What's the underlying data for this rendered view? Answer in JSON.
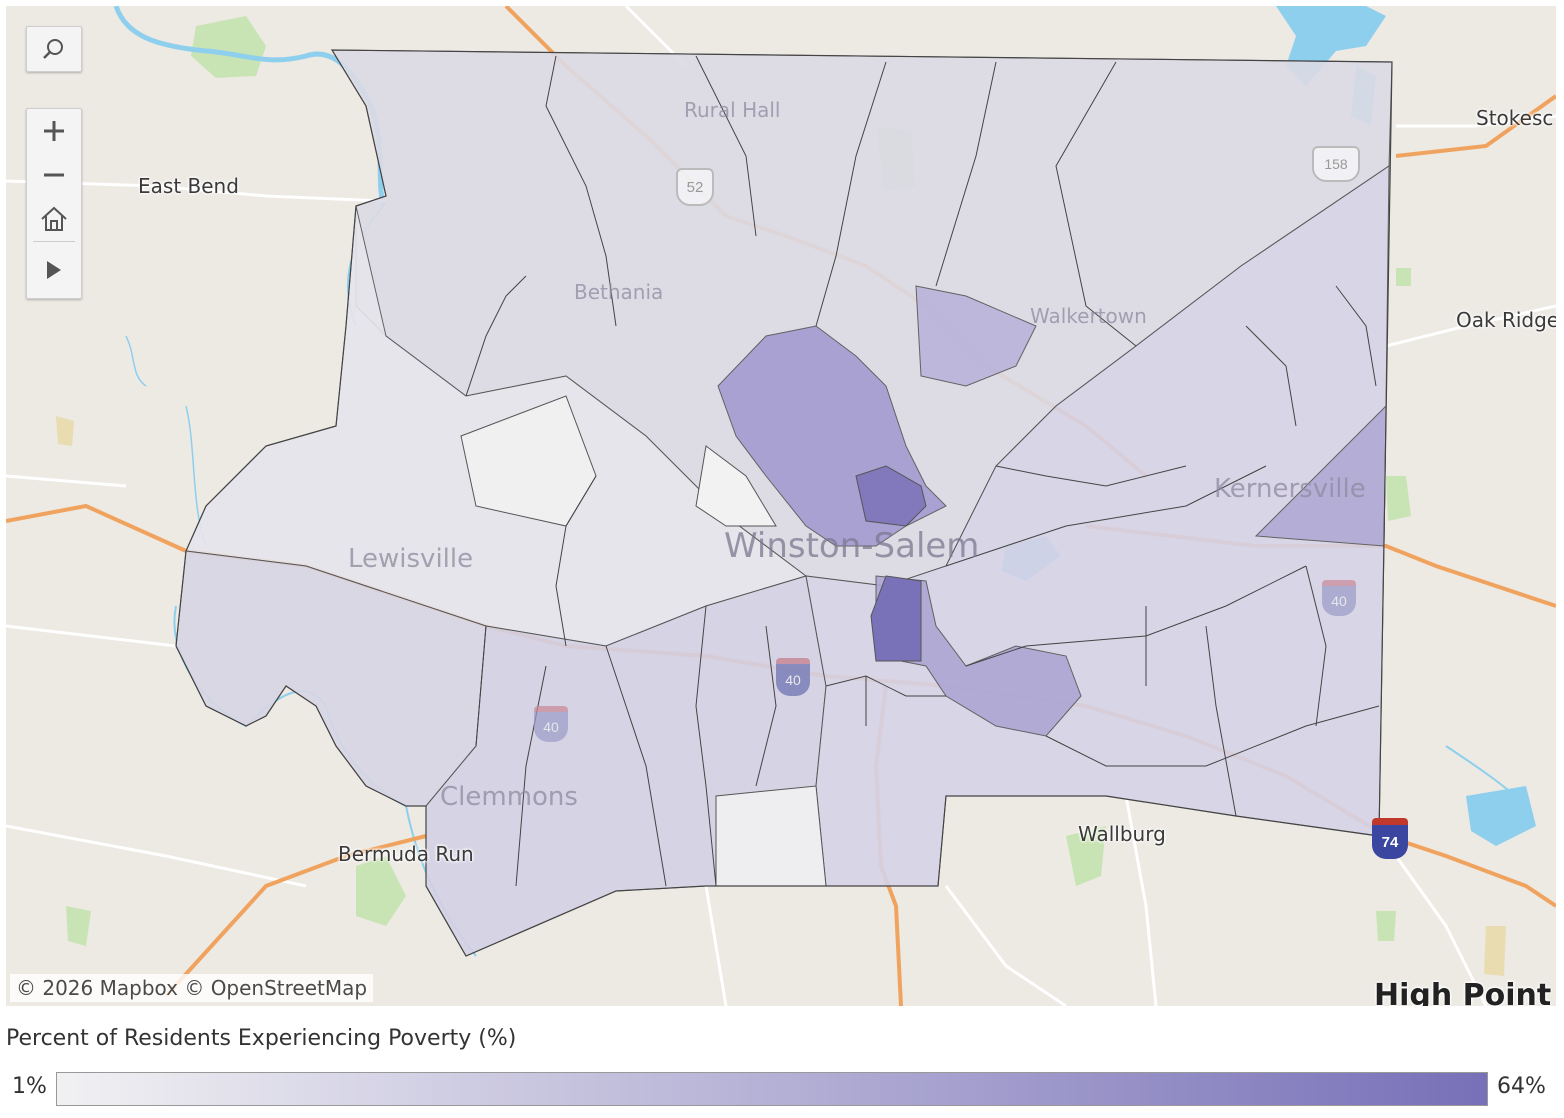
{
  "map": {
    "places": [
      {
        "id": "east-bend",
        "label": "East Bend",
        "style": "normal"
      },
      {
        "id": "rural-hall",
        "label": "Rural Hall",
        "style": "faded"
      },
      {
        "id": "bethania",
        "label": "Bethania",
        "style": "faded"
      },
      {
        "id": "walkertown",
        "label": "Walkertown",
        "style": "faded"
      },
      {
        "id": "kernersville",
        "label": "Kernersville",
        "style": "faded"
      },
      {
        "id": "lewisville",
        "label": "Lewisville",
        "style": "faded"
      },
      {
        "id": "winston-salem",
        "label": "Winston-Salem",
        "style": "big"
      },
      {
        "id": "clemmons",
        "label": "Clemmons",
        "style": "faded"
      },
      {
        "id": "bermuda-run",
        "label": "Bermuda Run",
        "style": "normal"
      },
      {
        "id": "wallburg",
        "label": "Wallburg",
        "style": "normal"
      },
      {
        "id": "stokesdale",
        "label": "Stokesc",
        "style": "normal"
      },
      {
        "id": "oak-ridge",
        "label": "Oak Ridge",
        "style": "normal"
      },
      {
        "id": "high-point",
        "label": "High Point",
        "style": "cut"
      }
    ],
    "shields": [
      {
        "id": "us-52",
        "label": "52"
      },
      {
        "id": "us-158",
        "label": "158"
      },
      {
        "id": "i-40-center",
        "label": "40"
      },
      {
        "id": "i-40-west",
        "label": "40"
      },
      {
        "id": "i-40-east",
        "label": "40"
      },
      {
        "id": "i-74",
        "label": "74"
      }
    ],
    "attribution": "© 2026 Mapbox  © OpenStreetMap",
    "colors": {
      "land": "#ede9e3",
      "water": "#8ecfee",
      "park": "#c9e4b4",
      "highway": "#f0a35e",
      "road": "#ffffff",
      "county_fill": "#9c94cc",
      "low": "#f1f1f3",
      "high": "#7870b8"
    }
  },
  "controls": {
    "search": "search-icon",
    "zoom_in": "plus-icon",
    "zoom_out": "minus-icon",
    "home": "home-icon",
    "play": "play-icon"
  },
  "legend": {
    "title": "Percent of Residents Experiencing Poverty (%)",
    "min": "1%",
    "max": "64%",
    "min_value": 1,
    "max_value": 64,
    "color_low": "#f1f1f3",
    "color_high": "#7870b8"
  }
}
